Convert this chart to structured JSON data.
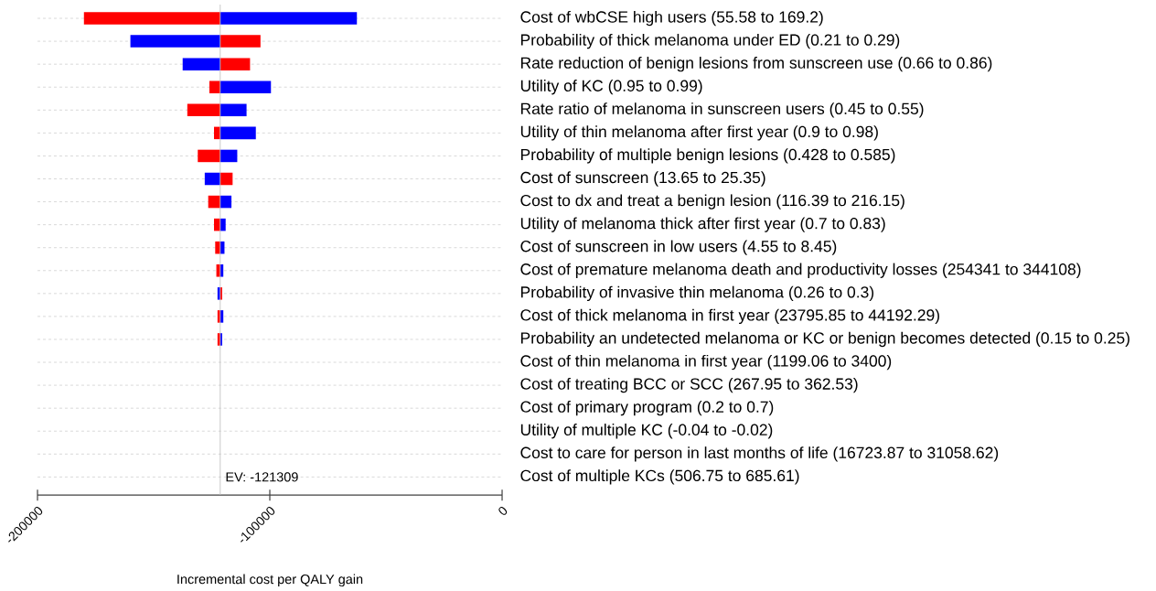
{
  "chart_data": {
    "type": "bar",
    "orientation": "horizontal",
    "xlabel": "Incremental cost per QALY gain",
    "categories": [
      "Cost of wbCSE high users (55.58 to 169.2)",
      "Probability of thick melanoma under ED (0.21 to 0.29)",
      "Rate reduction of benign lesions from sunscreen use (0.66 to 0.86)",
      "Utility of KC (0.95 to 0.99)",
      "Rate ratio of melanoma in sunscreen users (0.45 to 0.55)",
      "Utility of thin melanoma after first year (0.9 to 0.98)",
      "Probability of multiple benign lesions (0.428 to 0.585)",
      "Cost of sunscreen (13.65 to 25.35)",
      "Cost to dx and treat a benign lesion (116.39 to 216.15)",
      "Utility of melanoma thick after first year (0.7 to 0.83)",
      "Cost of sunscreen in low users (4.55 to 8.45)",
      "Cost of premature melanoma death and productivity losses (254341 to 344108)",
      "Probability of invasive thin melanoma (0.26 to 0.3)",
      "Cost of thick melanoma in first year (23795.85 to 44192.29)",
      "Probability an undetected melanoma or KC or benign becomes detected (0.15 to 0.25)",
      "Cost of thin melanoma in first year (1199.06 to 3400)",
      "Cost of treating BCC or SCC (267.95 to 362.53)",
      "Cost of primary program (0.2 to 0.7)",
      "Utility of multiple KC (-0.04 to -0.02)",
      "Cost to care for person in last months of life (16723.87 to 31058.62)",
      "Cost of multiple KCs (506.75 to 685.61)"
    ],
    "series": [
      {
        "color": "#ff0000",
        "base": [
          -121309,
          -121309,
          -121309,
          -121309,
          -121309,
          -121309,
          -121309,
          -121309,
          -121309,
          -121309,
          -121309,
          -121309,
          -121309,
          -121309,
          -121309,
          null,
          null,
          null,
          null,
          null,
          null
        ],
        "values": [
          -58700,
          17300,
          12800,
          -4700,
          -14200,
          -2700,
          -9700,
          5300,
          -5200,
          -2700,
          -2200,
          -1700,
          800,
          -1200,
          -1200,
          null,
          null,
          null,
          null,
          null,
          null
        ]
      },
      {
        "color": "#0000ff",
        "base": [
          -121309,
          -121309,
          -121309,
          -121309,
          -121309,
          -121309,
          -121309,
          -121309,
          -121309,
          -121309,
          -121309,
          -121309,
          -121309,
          -121309,
          -121309,
          null,
          null,
          null,
          null,
          null,
          null
        ],
        "values": [
          58800,
          -38700,
          -16200,
          21800,
          11300,
          15300,
          7300,
          -6700,
          4800,
          2300,
          1800,
          1300,
          -1200,
          1300,
          800,
          null,
          null,
          null,
          null,
          null,
          null
        ]
      }
    ],
    "xlim": [
      -200000,
      0
    ],
    "xticks": [
      -200000,
      -100000,
      0
    ],
    "grid": "y",
    "ref_lines": [
      {
        "axis": "x",
        "value": -121309,
        "label": "EV: -121309",
        "color": "#c0c0c0"
      }
    ]
  }
}
